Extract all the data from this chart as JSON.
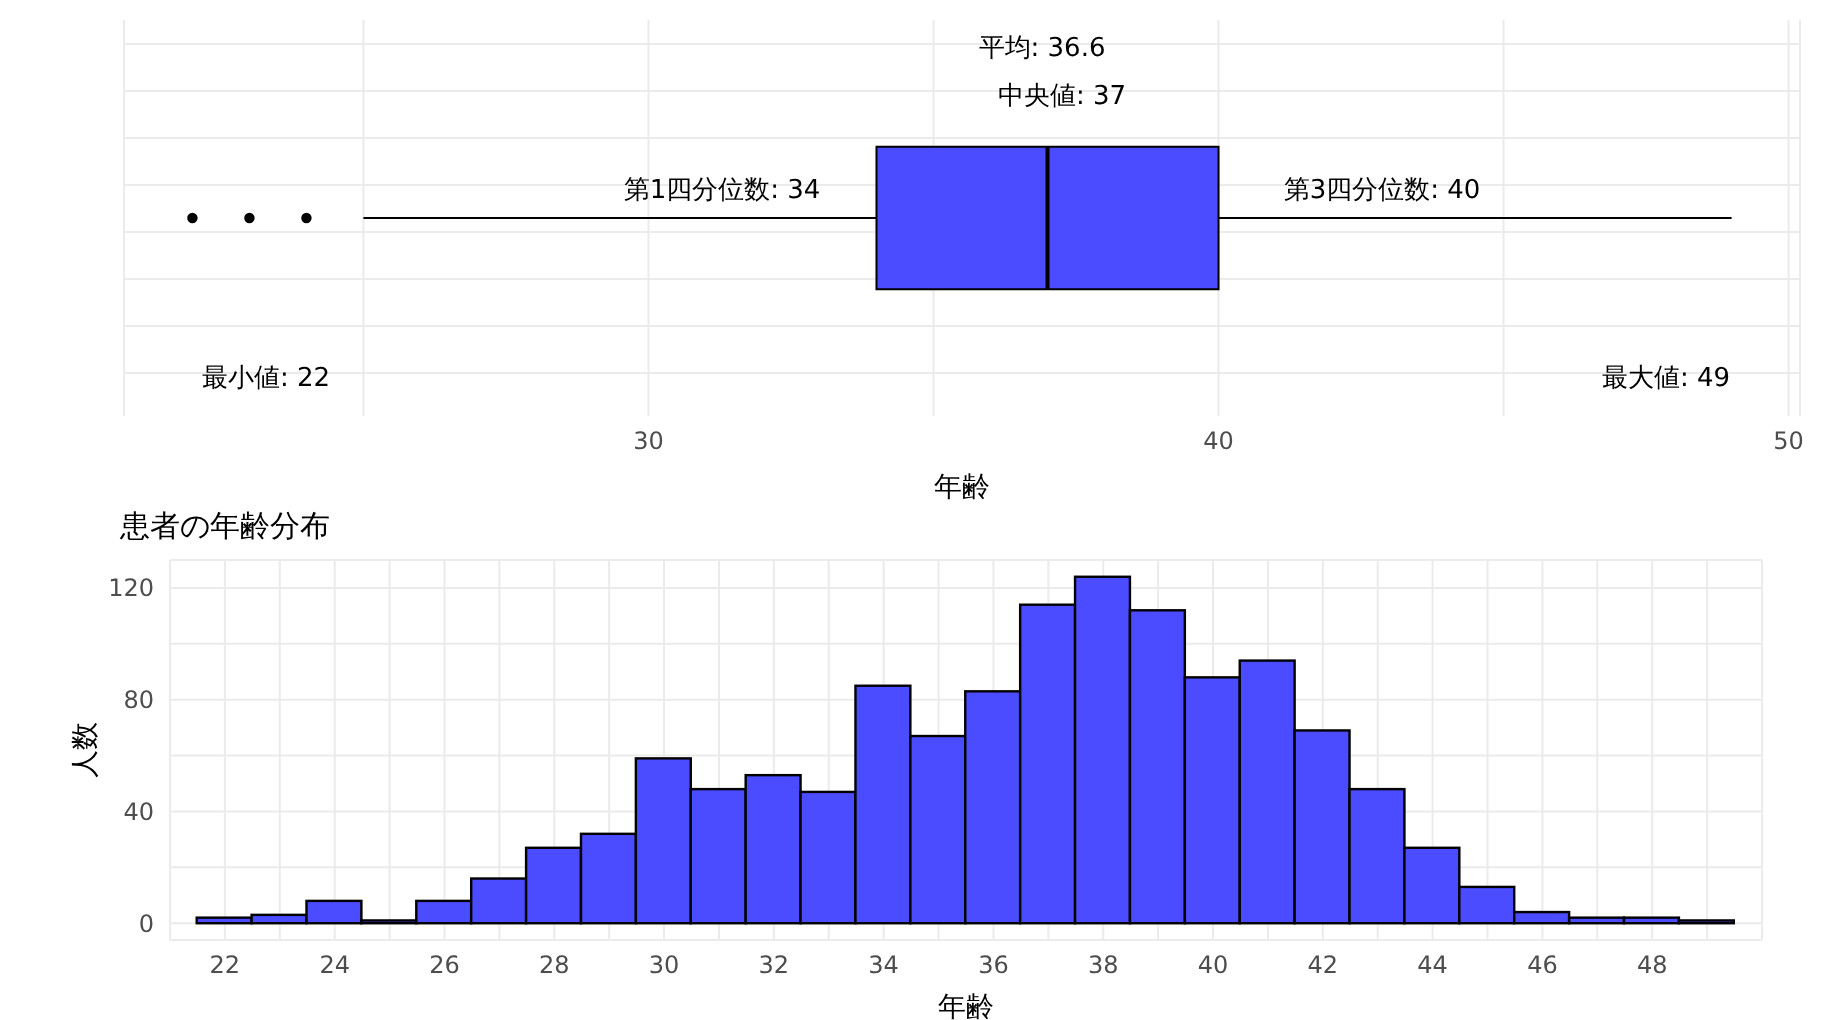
{
  "chart_data": [
    {
      "type": "box",
      "orientation": "horizontal",
      "categories": [
        null
      ],
      "boxes": [
        {
          "low": 25,
          "q1": 34,
          "median": 37,
          "q3": 40,
          "high": 49,
          "outliers": [
            22,
            23,
            24
          ]
        }
      ],
      "color": "#4b4bff",
      "xlabel": "年齢",
      "xlim": [
        20.8,
        50.2
      ],
      "xticks": [
        {
          "value": 25,
          "label": null
        },
        30,
        {
          "value": 35,
          "label": null
        },
        40,
        {
          "value": 45,
          "label": null
        },
        50
      ],
      "tick_labels": "x",
      "grid": true,
      "annotations": [
        "平均: 36.6",
        "中央値: 37",
        "第1四分位数: 34",
        "第3四分位数: 40",
        "最小値: 22",
        "最大値: 49"
      ]
    },
    {
      "type": "histogram",
      "title": "患者の年齢分布",
      "xlabel": "年齢",
      "ylabel": "人数",
      "bins": [
        21.5,
        22.5,
        23.5,
        24.5,
        25.5,
        26.5,
        27.5,
        28.5,
        29.5,
        30.5,
        31.5,
        32.5,
        33.5,
        34.5,
        35.5,
        36.5,
        37.5,
        38.5,
        39.5,
        40.5,
        41.5,
        42.5,
        43.5,
        44.5,
        45.5,
        46.5,
        47.5,
        48.5,
        49.5
      ],
      "values": [
        2,
        3,
        8,
        1,
        8,
        16,
        27,
        32,
        59,
        48,
        53,
        47,
        85,
        67,
        83,
        114,
        124,
        112,
        88,
        94,
        69,
        48,
        27,
        13,
        4,
        2,
        2,
        1
      ],
      "color": "#4b4bff",
      "xlim": [
        21,
        50
      ],
      "xticks": [
        {
          "value": 21,
          "label": null
        },
        22,
        {
          "value": 23,
          "label": null
        },
        24,
        {
          "value": 25,
          "label": null
        },
        26,
        {
          "value": 27,
          "label": null
        },
        28,
        {
          "value": 29,
          "label": null
        },
        30,
        {
          "value": 31,
          "label": null
        },
        32,
        {
          "value": 33,
          "label": null
        },
        34,
        {
          "value": 35,
          "label": null
        },
        36,
        {
          "value": 37,
          "label": null
        },
        38,
        {
          "value": 39,
          "label": null
        },
        40,
        {
          "value": 41,
          "label": null
        },
        42,
        {
          "value": 43,
          "label": null
        },
        44,
        {
          "value": 45,
          "label": null
        },
        46,
        {
          "value": 47,
          "label": null
        },
        48,
        {
          "value": 49,
          "label": null
        },
        {
          "value": 50,
          "label": null
        }
      ],
      "ylim": [
        -6,
        130
      ],
      "yticks": [
        0,
        {
          "value": 20,
          "label": null
        },
        40,
        {
          "value": 60,
          "label": null
        },
        80,
        {
          "value": 100,
          "label": null
        },
        120
      ],
      "grid": true
    }
  ]
}
